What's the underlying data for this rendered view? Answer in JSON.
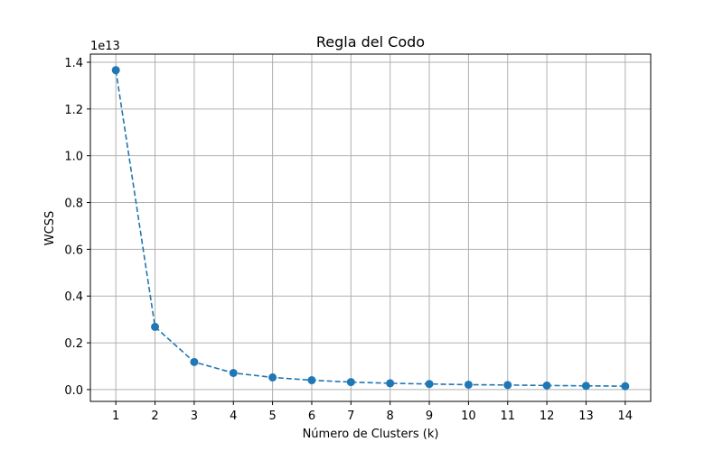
{
  "chart_data": {
    "type": "line",
    "title": "Regla del Codo",
    "xlabel": "Número de Clusters (k)",
    "ylabel": "WCSS",
    "y_offset_label": "1e13",
    "y_scale_factor": 10000000000000.0,
    "x": [
      1,
      2,
      3,
      4,
      5,
      6,
      7,
      8,
      9,
      10,
      11,
      12,
      13,
      14
    ],
    "series": [
      {
        "values": [
          13660000000000.0,
          2680000000000.0,
          1180000000000.0,
          710000000000.0,
          520000000000.0,
          400000000000.0,
          320000000000.0,
          270000000000.0,
          240000000000.0,
          210000000000.0,
          195000000000.0,
          175000000000.0,
          160000000000.0,
          145000000000.0
        ],
        "color": "#1f77b4",
        "line_style": "dashed",
        "marker": "circle"
      }
    ],
    "xticks": [
      1,
      2,
      3,
      4,
      5,
      6,
      7,
      8,
      9,
      10,
      11,
      12,
      13,
      14
    ],
    "xtick_labels": [
      "1",
      "2",
      "3",
      "4",
      "5",
      "6",
      "7",
      "8",
      "9",
      "10",
      "11",
      "12",
      "13",
      "14"
    ],
    "yticks": [
      0,
      0.2,
      0.4,
      0.6,
      0.8,
      1.0,
      1.2,
      1.4
    ],
    "ytick_labels": [
      "0.0",
      "0.2",
      "0.4",
      "0.6",
      "0.8",
      "1.0",
      "1.2",
      "1.4"
    ],
    "xlim": [
      0.35,
      14.65
    ],
    "ylim": [
      -0.0505,
      1.4347
    ],
    "grid": true,
    "legend": "none"
  }
}
